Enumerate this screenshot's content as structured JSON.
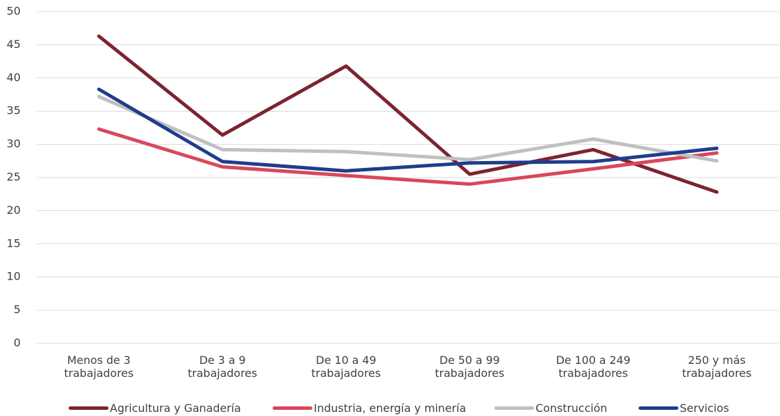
{
  "chart_data": {
    "type": "line",
    "categories": [
      "Menos de 3 trabajadores",
      "De 3 a 9 trabajadores",
      "De 10 a 49 trabajadores",
      "De 50 a 99 trabajadores",
      "De 100 a 249 trabajadores",
      "250 y más trabajadores"
    ],
    "series": [
      {
        "name": "Agricultura y Ganadería",
        "color": "#7b2430",
        "values": [
          46.3,
          31.4,
          41.8,
          25.5,
          29.2,
          22.8
        ]
      },
      {
        "name": "Industria, energía y minería",
        "color": "#d9475a",
        "values": [
          32.3,
          26.6,
          25.3,
          24.0,
          26.3,
          28.7
        ]
      },
      {
        "name": "Construcción",
        "color": "#c0c0c0",
        "values": [
          37.2,
          29.2,
          28.9,
          27.7,
          30.8,
          27.5
        ]
      },
      {
        "name": "Servicios",
        "color": "#1f3d8c",
        "values": [
          38.3,
          27.4,
          26.0,
          27.2,
          27.4,
          29.4
        ]
      }
    ],
    "ylim": [
      0,
      50
    ],
    "yticks": [
      0,
      5,
      10,
      15,
      20,
      25,
      30,
      35,
      40,
      45,
      50
    ],
    "grid": true
  }
}
